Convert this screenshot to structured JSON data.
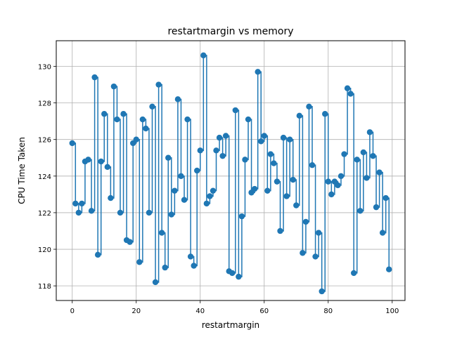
{
  "chart_data": {
    "type": "line",
    "subtype": "step",
    "title": "restartmargin vs memory",
    "xlabel": "restartmargin",
    "ylabel": "CPU Time Taken",
    "xlim": [
      -5,
      104
    ],
    "ylim": [
      117.2,
      131.4
    ],
    "xticks": [
      0,
      20,
      40,
      60,
      80,
      100
    ],
    "yticks": [
      118,
      120,
      122,
      124,
      126,
      128,
      130
    ],
    "grid": true,
    "marker": "circle",
    "color": "#1f77b4",
    "x": [
      0,
      1,
      2,
      3,
      4,
      5,
      6,
      7,
      8,
      9,
      10,
      11,
      12,
      13,
      14,
      15,
      16,
      17,
      18,
      19,
      20,
      21,
      22,
      23,
      24,
      25,
      26,
      27,
      28,
      29,
      30,
      31,
      32,
      33,
      34,
      35,
      36,
      37,
      38,
      39,
      40,
      41,
      42,
      43,
      44,
      45,
      46,
      47,
      48,
      49,
      50,
      51,
      52,
      53,
      54,
      55,
      56,
      57,
      58,
      59,
      60,
      61,
      62,
      63,
      64,
      65,
      66,
      67,
      68,
      69,
      70,
      71,
      72,
      73,
      74,
      75,
      76,
      77,
      78,
      79,
      80,
      81,
      82,
      83,
      84,
      85,
      86,
      87,
      88,
      89,
      90,
      91,
      92,
      93,
      94,
      95,
      96,
      97,
      98,
      99
    ],
    "y": [
      125.8,
      122.5,
      122.0,
      122.5,
      124.8,
      124.9,
      122.1,
      129.4,
      119.7,
      124.8,
      127.4,
      124.5,
      122.8,
      128.9,
      127.1,
      122.0,
      127.4,
      120.5,
      120.4,
      125.8,
      126.0,
      119.3,
      127.1,
      126.6,
      122.0,
      127.8,
      118.2,
      129.0,
      120.9,
      119.0,
      125.0,
      121.9,
      123.2,
      128.2,
      124.0,
      122.7,
      127.1,
      119.6,
      119.1,
      124.3,
      125.4,
      130.6,
      122.5,
      122.9,
      123.2,
      125.4,
      126.1,
      125.1,
      126.2,
      118.8,
      118.7,
      127.6,
      118.5,
      121.8,
      124.9,
      127.1,
      123.1,
      123.3,
      129.7,
      125.9,
      126.2,
      123.2,
      125.2,
      124.7,
      123.7,
      121.0,
      126.1,
      122.9,
      126.0,
      123.8,
      122.4,
      127.3,
      119.8,
      121.5,
      127.8,
      124.6,
      119.6,
      120.9,
      117.7,
      127.4,
      123.7,
      123.0,
      123.7,
      123.5,
      124.0,
      125.2,
      128.8,
      128.5,
      118.7,
      124.9,
      122.1,
      125.3,
      123.9,
      126.4,
      125.1,
      122.3,
      124.2,
      120.9,
      122.8,
      118.9
    ]
  }
}
